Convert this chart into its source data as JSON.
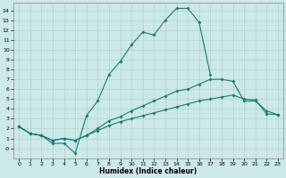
{
  "xlabel": "Humidex (Indice chaleur)",
  "line_color": "#1a7a6e",
  "bg_color": "#cce8e8",
  "grid_color": "#a8cccc",
  "xlim": [
    -0.5,
    23.5
  ],
  "ylim": [
    -1.0,
    14.8
  ],
  "xticks": [
    0,
    1,
    2,
    3,
    4,
    5,
    6,
    7,
    8,
    9,
    10,
    11,
    12,
    13,
    14,
    15,
    16,
    17,
    18,
    19,
    20,
    21,
    22,
    23
  ],
  "yticks": [
    0,
    1,
    2,
    3,
    4,
    5,
    6,
    7,
    8,
    9,
    10,
    11,
    12,
    13,
    14
  ],
  "line1_x": [
    0,
    1,
    2,
    3,
    4,
    5,
    6,
    7,
    8,
    9,
    10,
    11,
    12,
    13,
    14,
    15,
    16,
    17
  ],
  "line1_y": [
    2.2,
    1.5,
    1.3,
    0.5,
    0.5,
    -0.5,
    3.3,
    4.8,
    7.5,
    8.8,
    10.5,
    11.8,
    11.5,
    13.0,
    14.2,
    14.2,
    12.8,
    7.5
  ],
  "line2_x": [
    0,
    1,
    2,
    3,
    4,
    5,
    6,
    7,
    8,
    9,
    10,
    11,
    12,
    13,
    14,
    15,
    16,
    17,
    18,
    19,
    20,
    21,
    22,
    23
  ],
  "line2_y": [
    2.2,
    1.5,
    1.3,
    0.8,
    1.0,
    0.8,
    1.3,
    2.0,
    2.8,
    3.2,
    3.8,
    4.3,
    4.8,
    5.3,
    5.8,
    6.0,
    6.5,
    7.0,
    7.0,
    6.8,
    4.8,
    4.8,
    3.8,
    3.4
  ],
  "line3_x": [
    0,
    1,
    2,
    3,
    4,
    5,
    6,
    7,
    8,
    9,
    10,
    11,
    12,
    13,
    14,
    15,
    16,
    17,
    18,
    19,
    20,
    21,
    22,
    23
  ],
  "line3_y": [
    2.2,
    1.5,
    1.3,
    0.8,
    1.0,
    0.8,
    1.3,
    1.8,
    2.3,
    2.7,
    3.0,
    3.3,
    3.6,
    3.9,
    4.2,
    4.5,
    4.8,
    5.0,
    5.2,
    5.4,
    5.0,
    4.9,
    3.5,
    3.4
  ]
}
